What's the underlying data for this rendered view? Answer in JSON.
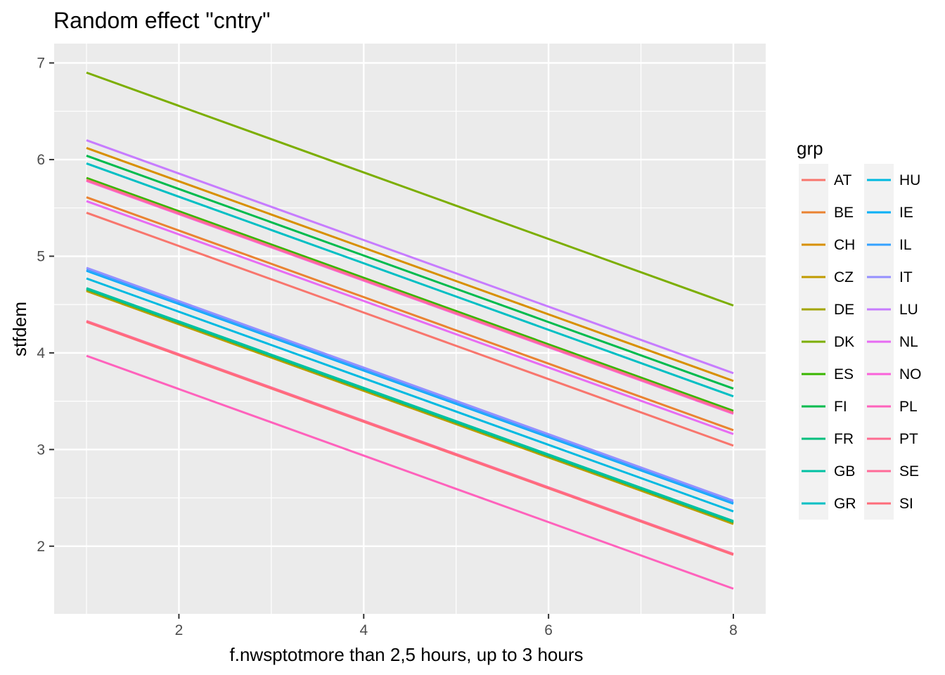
{
  "chart_data": {
    "type": "line",
    "title": "Random effect \"cntry\"",
    "xlabel": "f.nwsptotmore than 2,5 hours, up to 3 hours",
    "ylabel": "stfdem",
    "xlim": [
      0.65,
      8.35
    ],
    "ylim": [
      1.3,
      7.2
    ],
    "x_ticks": [
      2,
      4,
      6,
      8
    ],
    "x_tick_labels": [
      "2",
      "4",
      "6",
      "8"
    ],
    "y_ticks": [
      2,
      3,
      4,
      5,
      6,
      7
    ],
    "y_tick_labels": [
      "2",
      "3",
      "4",
      "5",
      "6",
      "7"
    ],
    "x": [
      1,
      8
    ],
    "grid": true,
    "legend": {
      "title": "grp",
      "placement": "right",
      "columns": 2
    },
    "series": [
      {
        "name": "AT",
        "color": "#F8766D",
        "values": [
          5.45,
          3.04
        ]
      },
      {
        "name": "BE",
        "color": "#EA8331",
        "values": [
          5.61,
          3.2
        ]
      },
      {
        "name": "CH",
        "color": "#D89000",
        "values": [
          6.12,
          3.71
        ]
      },
      {
        "name": "CZ",
        "color": "#C09B00",
        "values": [
          4.64,
          2.23
        ]
      },
      {
        "name": "DE",
        "color": "#A3A500",
        "values": [
          4.65,
          2.24
        ]
      },
      {
        "name": "DK",
        "color": "#7CAE00",
        "values": [
          6.9,
          4.49
        ]
      },
      {
        "name": "ES",
        "color": "#39B600",
        "values": [
          5.81,
          3.4
        ]
      },
      {
        "name": "FI",
        "color": "#00BB4E",
        "values": [
          6.04,
          3.63
        ]
      },
      {
        "name": "FR",
        "color": "#00BF7D",
        "values": [
          4.66,
          2.25
        ]
      },
      {
        "name": "GB",
        "color": "#00C1A3",
        "values": [
          4.67,
          2.26
        ]
      },
      {
        "name": "GR",
        "color": "#00BFC4",
        "values": [
          5.96,
          3.55
        ]
      },
      {
        "name": "HU",
        "color": "#00BAE0",
        "values": [
          4.77,
          2.36
        ]
      },
      {
        "name": "IE",
        "color": "#00B0F6",
        "values": [
          4.85,
          2.44
        ]
      },
      {
        "name": "IL",
        "color": "#35A2FF",
        "values": [
          4.86,
          2.45
        ]
      },
      {
        "name": "IT",
        "color": "#9590FF",
        "values": [
          4.88,
          2.47
        ]
      },
      {
        "name": "LU",
        "color": "#C77CFF",
        "values": [
          6.2,
          3.79
        ]
      },
      {
        "name": "NL",
        "color": "#E76BF3",
        "values": [
          5.57,
          3.16
        ]
      },
      {
        "name": "NO",
        "color": "#FA62DB",
        "values": [
          5.78,
          3.37
        ]
      },
      {
        "name": "PL",
        "color": "#FF62BC",
        "values": [
          3.97,
          1.56
        ]
      },
      {
        "name": "PT",
        "color": "#FF6C91",
        "values": [
          5.79,
          3.38
        ]
      },
      {
        "name": "SE",
        "color": "#FF6A98",
        "values": [
          4.33,
          1.92
        ]
      },
      {
        "name": "SI",
        "color": "#FF6C7A",
        "values": [
          4.32,
          1.91
        ]
      }
    ]
  }
}
